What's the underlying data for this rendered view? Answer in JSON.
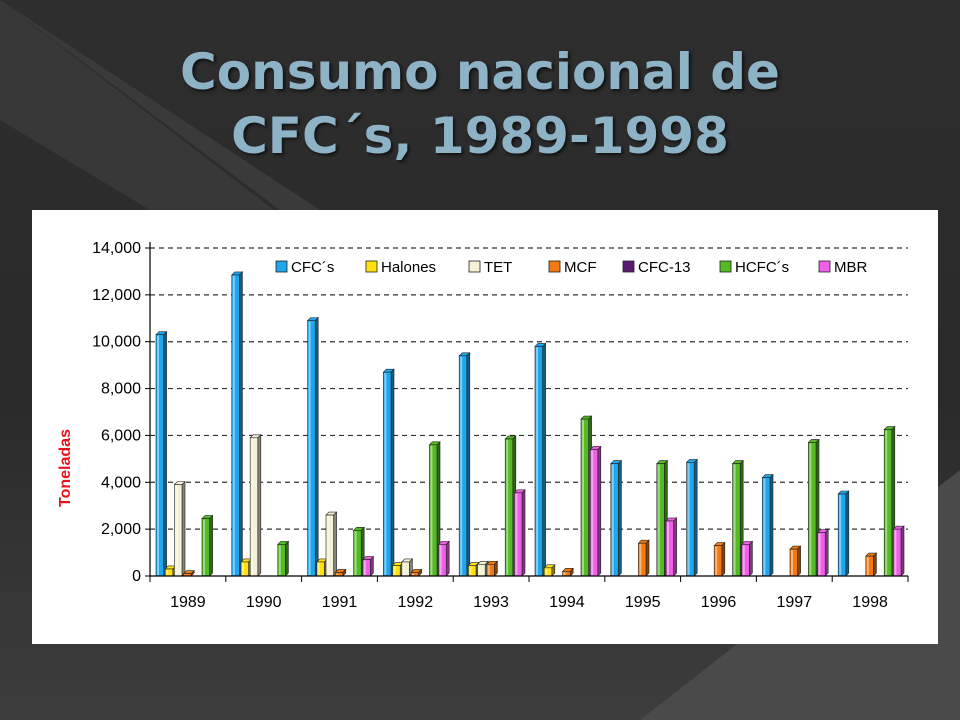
{
  "slide": {
    "title_line1": "Consumo nacional de",
    "title_line2": "CFC´s, 1989-1998"
  },
  "chart_data": {
    "type": "bar",
    "ylabel": "Toneladas",
    "xlabel": "",
    "ylim": [
      0,
      14000
    ],
    "yticks": [
      "0",
      "2,000",
      "4,000",
      "6,000",
      "8,000",
      "10,000",
      "12,000",
      "14,000"
    ],
    "grid": true,
    "legend_position": "top",
    "categories": [
      "1989",
      "1990",
      "1991",
      "1992",
      "1993",
      "1994",
      "1995",
      "1996",
      "1997",
      "1998"
    ],
    "series": [
      {
        "name": "CFC´s",
        "color": "#1ea7ef",
        "values": [
          10300,
          12850,
          10900,
          8700,
          9400,
          9800,
          4800,
          4850,
          4200,
          3500
        ]
      },
      {
        "name": "Halones",
        "color": "#ffe20f",
        "values": [
          300,
          600,
          600,
          450,
          450,
          350,
          0,
          0,
          0,
          0
        ]
      },
      {
        "name": "TET",
        "color": "#f4f1d4",
        "values": [
          3900,
          5900,
          2600,
          600,
          500,
          0,
          0,
          0,
          0,
          0
        ]
      },
      {
        "name": "MCF",
        "color": "#f27a12",
        "values": [
          100,
          0,
          150,
          150,
          500,
          200,
          1400,
          1300,
          1150,
          850
        ]
      },
      {
        "name": "CFC-13",
        "color": "#5a1a74",
        "values": [
          0,
          0,
          0,
          0,
          0,
          0,
          0,
          0,
          0,
          0
        ]
      },
      {
        "name": "HCFC´s",
        "color": "#55bb25",
        "values": [
          2450,
          1350,
          1950,
          5600,
          5850,
          6700,
          4800,
          4800,
          5700,
          6250
        ]
      },
      {
        "name": "MBR",
        "color": "#ee60e8",
        "values": [
          0,
          0,
          700,
          1350,
          3550,
          5400,
          2350,
          1350,
          1850,
          2000
        ]
      }
    ]
  }
}
